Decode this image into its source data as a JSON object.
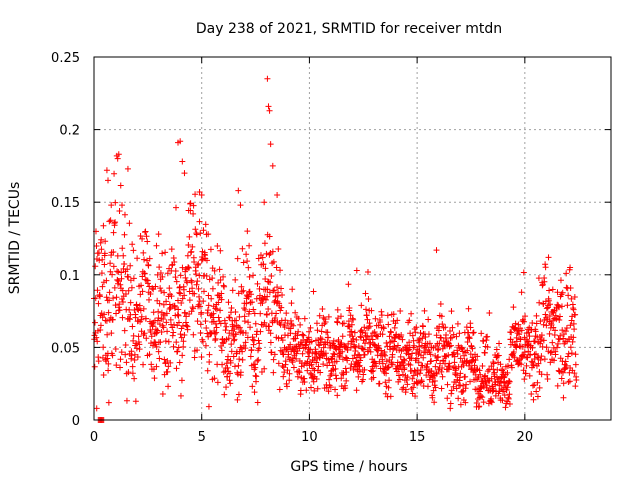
{
  "chart_data": {
    "type": "scatter",
    "title": "Day 238 of 2021, SRMTID for receiver mtdn",
    "xlabel": "GPS time / hours",
    "ylabel": "SRMTID / TECUs",
    "xlim": [
      0,
      24
    ],
    "ylim": [
      0,
      0.25
    ],
    "grid": true,
    "x_ticks": [
      0,
      5,
      10,
      15,
      20
    ],
    "y_ticks": [
      0,
      0.05,
      0.1,
      0.15,
      0.2,
      0.25
    ],
    "x_tick_labels": [
      "0",
      "5",
      "10",
      "15",
      "20"
    ],
    "y_tick_labels": [
      "0",
      "0.05",
      "0.1",
      "0.15",
      "0.2",
      "0.25"
    ],
    "marker": "plus",
    "color": "#ff0000",
    "series": [
      {
        "name": "SRMTID",
        "envelope": [
          [
            0.0,
            0.08,
            0.03
          ],
          [
            0.3,
            0.07,
            0.03
          ],
          [
            0.5,
            0.1,
            0.035
          ],
          [
            0.8,
            0.09,
            0.035
          ],
          [
            1.2,
            0.08,
            0.03
          ],
          [
            1.6,
            0.075,
            0.03
          ],
          [
            2.0,
            0.08,
            0.025
          ],
          [
            2.5,
            0.075,
            0.02
          ],
          [
            3.0,
            0.07,
            0.02
          ],
          [
            3.5,
            0.065,
            0.02
          ],
          [
            4.0,
            0.08,
            0.03
          ],
          [
            4.4,
            0.09,
            0.03
          ],
          [
            5.0,
            0.095,
            0.03
          ],
          [
            5.5,
            0.07,
            0.025
          ],
          [
            6.0,
            0.055,
            0.02
          ],
          [
            6.5,
            0.06,
            0.025
          ],
          [
            7.0,
            0.06,
            0.02
          ],
          [
            7.5,
            0.07,
            0.02
          ],
          [
            8.0,
            0.08,
            0.025
          ],
          [
            8.5,
            0.07,
            0.02
          ],
          [
            9.0,
            0.05,
            0.015
          ],
          [
            9.5,
            0.045,
            0.012
          ],
          [
            10.0,
            0.045,
            0.012
          ],
          [
            11.0,
            0.045,
            0.012
          ],
          [
            12.0,
            0.05,
            0.014
          ],
          [
            13.0,
            0.05,
            0.014
          ],
          [
            14.0,
            0.045,
            0.013
          ],
          [
            15.0,
            0.04,
            0.013
          ],
          [
            16.0,
            0.045,
            0.014
          ],
          [
            17.0,
            0.04,
            0.013
          ],
          [
            18.0,
            0.035,
            0.012
          ],
          [
            19.0,
            0.025,
            0.01
          ],
          [
            19.5,
            0.05,
            0.015
          ],
          [
            20.0,
            0.045,
            0.013
          ],
          [
            20.5,
            0.05,
            0.015
          ],
          [
            21.0,
            0.065,
            0.02
          ],
          [
            21.5,
            0.06,
            0.018
          ],
          [
            22.0,
            0.06,
            0.02
          ],
          [
            22.4,
            0.05,
            0.018
          ]
        ],
        "spikes": [
          [
            0.6,
            0.172
          ],
          [
            0.65,
            0.165
          ],
          [
            0.8,
            0.148
          ],
          [
            1.1,
            0.18
          ],
          [
            1.15,
            0.183
          ],
          [
            1.3,
            0.148
          ],
          [
            2.9,
            0.12
          ],
          [
            3.0,
            0.128
          ],
          [
            3.9,
            0.191
          ],
          [
            4.0,
            0.192
          ],
          [
            4.1,
            0.178
          ],
          [
            4.2,
            0.17
          ],
          [
            4.6,
            0.142
          ],
          [
            4.9,
            0.157
          ],
          [
            5.0,
            0.155
          ],
          [
            5.3,
            0.128
          ],
          [
            6.7,
            0.158
          ],
          [
            6.8,
            0.148
          ],
          [
            7.2,
            0.12
          ],
          [
            7.9,
            0.15
          ],
          [
            8.05,
            0.235
          ],
          [
            8.1,
            0.216
          ],
          [
            8.15,
            0.213
          ],
          [
            8.2,
            0.19
          ],
          [
            8.3,
            0.175
          ],
          [
            8.5,
            0.155
          ],
          [
            12.2,
            0.103
          ],
          [
            15.9,
            0.117
          ],
          [
            21.1,
            0.112
          ],
          [
            22.1,
            0.105
          ]
        ],
        "zero_points": [
          0.2,
          0.25,
          0.3,
          0.35,
          0.4,
          0.45
        ]
      }
    ]
  }
}
